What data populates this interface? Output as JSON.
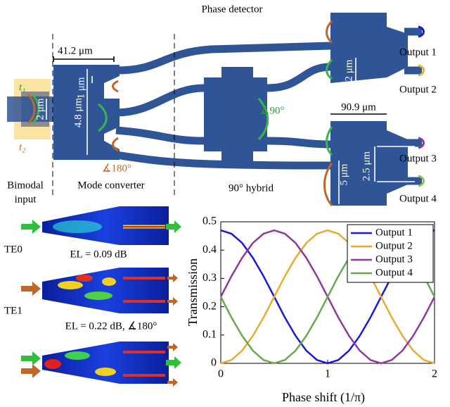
{
  "diagram": {
    "title": "Phase detector",
    "t1": "t₁",
    "t2": "t₂",
    "dim_41": "41.2 μm",
    "dim_1": "1 μm",
    "dim_48": "4.8 μm",
    "dim_2in": "2 μm",
    "phase_180": "∡180°",
    "phase_90": "∡90°",
    "dim_909": "90.9 μm",
    "dim_2out": "2 μm",
    "dim_5": "5 μm",
    "dim_25": "2.5 μm",
    "outputs": [
      "Output 1",
      "Output 2",
      "Output 3",
      "Output 4"
    ],
    "section_input": [
      "Bimodal",
      "input"
    ],
    "section_converter": "Mode converter",
    "section_hybrid": "90° hybrid"
  },
  "simulation": {
    "te0": "TE0",
    "el0": "EL = 0.09 dB",
    "te1": "TE1",
    "el1": "EL = 0.22 dB, ∡180°"
  },
  "chart_data": {
    "type": "line",
    "xlabel": "Phase shift (1/π)",
    "ylabel": "Transmission",
    "x": [
      0,
      0.1,
      0.2,
      0.3,
      0.4,
      0.5,
      0.6,
      0.7,
      0.8,
      0.9,
      1,
      1.1,
      1.2,
      1.3,
      1.4,
      1.5,
      1.6,
      1.7,
      1.8,
      1.9,
      2
    ],
    "series": [
      {
        "name": "Output 1",
        "color": "#1a1ad6",
        "values": [
          0.47,
          0.458,
          0.425,
          0.373,
          0.308,
          0.235,
          0.162,
          0.097,
          0.045,
          0.012,
          0,
          0.012,
          0.045,
          0.097,
          0.162,
          0.235,
          0.308,
          0.373,
          0.425,
          0.458,
          0.47
        ]
      },
      {
        "name": "Output 2",
        "color": "#e9ac2f",
        "values": [
          0,
          0.012,
          0.045,
          0.097,
          0.162,
          0.235,
          0.308,
          0.373,
          0.425,
          0.458,
          0.47,
          0.458,
          0.425,
          0.373,
          0.308,
          0.235,
          0.162,
          0.097,
          0.045,
          0.012,
          0
        ]
      },
      {
        "name": "Output 3",
        "color": "#8e3a9a",
        "values": [
          0.235,
          0.308,
          0.373,
          0.425,
          0.458,
          0.47,
          0.458,
          0.425,
          0.373,
          0.308,
          0.235,
          0.162,
          0.097,
          0.045,
          0.012,
          0,
          0.012,
          0.045,
          0.097,
          0.162,
          0.235
        ]
      },
      {
        "name": "Output 4",
        "color": "#6aa84f",
        "values": [
          0.235,
          0.162,
          0.097,
          0.045,
          0.012,
          0,
          0.012,
          0.045,
          0.097,
          0.162,
          0.235,
          0.308,
          0.373,
          0.425,
          0.458,
          0.47,
          0.458,
          0.425,
          0.373,
          0.308,
          0.235
        ]
      }
    ],
    "xlim": [
      0,
      2
    ],
    "xticks": [
      0,
      1,
      2
    ],
    "ylim": [
      0,
      0.5
    ],
    "yticks": [
      0,
      0.1,
      0.2,
      0.3,
      0.4,
      0.5
    ],
    "legend": "upper right"
  }
}
